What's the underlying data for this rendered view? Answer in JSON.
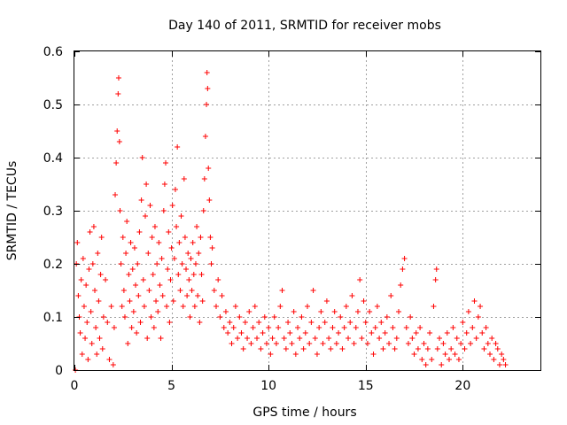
{
  "chart_data": {
    "type": "scatter",
    "title": "Day 140 of 2011, SRMTID for receiver mobs",
    "xlabel": "GPS time / hours",
    "ylabel": "SRMTID / TECUs",
    "xlim": [
      0,
      24
    ],
    "ylim": [
      0,
      0.6
    ],
    "x_ticks": [
      0,
      5,
      10,
      15,
      20
    ],
    "x_tick_labels": [
      "0",
      "5",
      "10",
      "15",
      "20"
    ],
    "y_ticks": [
      0,
      0.1,
      0.2,
      0.3,
      0.4,
      0.5,
      0.6
    ],
    "y_tick_labels": [
      "0",
      "0.1",
      "0.2",
      "0.3",
      "0.4",
      "0.5",
      "0.6"
    ],
    "grid": true,
    "marker": "+",
    "series_color": "#ff0000",
    "series": [
      {
        "name": "SRMTID",
        "points": [
          [
            0.05,
            0.0
          ],
          [
            0.1,
            0.2
          ],
          [
            0.15,
            0.24
          ],
          [
            0.2,
            0.14
          ],
          [
            0.25,
            0.1
          ],
          [
            0.3,
            0.07
          ],
          [
            0.35,
            0.17
          ],
          [
            0.4,
            0.03
          ],
          [
            0.45,
            0.21
          ],
          [
            0.5,
            0.12
          ],
          [
            0.55,
            0.06
          ],
          [
            0.6,
            0.16
          ],
          [
            0.65,
            0.09
          ],
          [
            0.7,
            0.02
          ],
          [
            0.75,
            0.19
          ],
          [
            0.8,
            0.26
          ],
          [
            0.85,
            0.11
          ],
          [
            0.9,
            0.05
          ],
          [
            0.95,
            0.2
          ],
          [
            1.0,
            0.27
          ],
          [
            1.05,
            0.15
          ],
          [
            1.1,
            0.08
          ],
          [
            1.15,
            0.03
          ],
          [
            1.2,
            0.22
          ],
          [
            1.25,
            0.13
          ],
          [
            1.3,
            0.06
          ],
          [
            1.35,
            0.18
          ],
          [
            1.4,
            0.25
          ],
          [
            1.45,
            0.04
          ],
          [
            1.5,
            0.1
          ],
          [
            1.6,
            0.17
          ],
          [
            1.7,
            0.09
          ],
          [
            1.8,
            0.02
          ],
          [
            1.9,
            0.12
          ],
          [
            2.0,
            0.01
          ],
          [
            2.05,
            0.08
          ],
          [
            2.1,
            0.33
          ],
          [
            2.15,
            0.39
          ],
          [
            2.2,
            0.45
          ],
          [
            2.25,
            0.52
          ],
          [
            2.28,
            0.55
          ],
          [
            2.32,
            0.43
          ],
          [
            2.35,
            0.3
          ],
          [
            2.4,
            0.2
          ],
          [
            2.45,
            0.12
          ],
          [
            2.5,
            0.25
          ],
          [
            2.55,
            0.15
          ],
          [
            2.6,
            0.1
          ],
          [
            2.65,
            0.22
          ],
          [
            2.7,
            0.28
          ],
          [
            2.75,
            0.05
          ],
          [
            2.8,
            0.18
          ],
          [
            2.85,
            0.13
          ],
          [
            2.9,
            0.24
          ],
          [
            2.95,
            0.08
          ],
          [
            3.0,
            0.19
          ],
          [
            3.05,
            0.11
          ],
          [
            3.1,
            0.23
          ],
          [
            3.15,
            0.16
          ],
          [
            3.2,
            0.07
          ],
          [
            3.25,
            0.2
          ],
          [
            3.3,
            0.14
          ],
          [
            3.35,
            0.26
          ],
          [
            3.4,
            0.09
          ],
          [
            3.45,
            0.32
          ],
          [
            3.5,
            0.4
          ],
          [
            3.55,
            0.17
          ],
          [
            3.6,
            0.12
          ],
          [
            3.65,
            0.29
          ],
          [
            3.7,
            0.35
          ],
          [
            3.75,
            0.06
          ],
          [
            3.8,
            0.22
          ],
          [
            3.85,
            0.15
          ],
          [
            3.9,
            0.31
          ],
          [
            3.95,
            0.1
          ],
          [
            4.0,
            0.25
          ],
          [
            4.05,
            0.18
          ],
          [
            4.1,
            0.08
          ],
          [
            4.15,
            0.27
          ],
          [
            4.2,
            0.13
          ],
          [
            4.25,
            0.2
          ],
          [
            4.3,
            0.11
          ],
          [
            4.35,
            0.24
          ],
          [
            4.4,
            0.16
          ],
          [
            4.45,
            0.06
          ],
          [
            4.5,
            0.21
          ],
          [
            4.55,
            0.14
          ],
          [
            4.6,
            0.3
          ],
          [
            4.65,
            0.35
          ],
          [
            4.7,
            0.39
          ],
          [
            4.75,
            0.12
          ],
          [
            4.8,
            0.19
          ],
          [
            4.85,
            0.26
          ],
          [
            4.9,
            0.09
          ],
          [
            4.95,
            0.17
          ],
          [
            5.0,
            0.23
          ],
          [
            5.05,
            0.31
          ],
          [
            5.1,
            0.13
          ],
          [
            5.15,
            0.21
          ],
          [
            5.2,
            0.34
          ],
          [
            5.25,
            0.27
          ],
          [
            5.3,
            0.42
          ],
          [
            5.35,
            0.18
          ],
          [
            5.4,
            0.24
          ],
          [
            5.45,
            0.15
          ],
          [
            5.5,
            0.29
          ],
          [
            5.55,
            0.2
          ],
          [
            5.6,
            0.12
          ],
          [
            5.65,
            0.36
          ],
          [
            5.7,
            0.25
          ],
          [
            5.75,
            0.19
          ],
          [
            5.8,
            0.14
          ],
          [
            5.85,
            0.22
          ],
          [
            5.9,
            0.17
          ],
          [
            5.95,
            0.1
          ],
          [
            6.0,
            0.21
          ],
          [
            6.05,
            0.15
          ],
          [
            6.1,
            0.24
          ],
          [
            6.15,
            0.18
          ],
          [
            6.2,
            0.12
          ],
          [
            6.25,
            0.2
          ],
          [
            6.3,
            0.27
          ],
          [
            6.35,
            0.14
          ],
          [
            6.4,
            0.22
          ],
          [
            6.45,
            0.09
          ],
          [
            6.5,
            0.25
          ],
          [
            6.55,
            0.18
          ],
          [
            6.6,
            0.13
          ],
          [
            6.65,
            0.3
          ],
          [
            6.7,
            0.36
          ],
          [
            6.75,
            0.44
          ],
          [
            6.8,
            0.5
          ],
          [
            6.83,
            0.56
          ],
          [
            6.86,
            0.53
          ],
          [
            6.9,
            0.38
          ],
          [
            6.95,
            0.32
          ],
          [
            7.0,
            0.25
          ],
          [
            7.05,
            0.2
          ],
          [
            7.1,
            0.23
          ],
          [
            7.2,
            0.15
          ],
          [
            7.3,
            0.12
          ],
          [
            7.4,
            0.17
          ],
          [
            7.5,
            0.1
          ],
          [
            7.6,
            0.14
          ],
          [
            7.7,
            0.08
          ],
          [
            7.8,
            0.11
          ],
          [
            7.9,
            0.07
          ],
          [
            8.0,
            0.09
          ],
          [
            8.1,
            0.05
          ],
          [
            8.2,
            0.08
          ],
          [
            8.3,
            0.12
          ],
          [
            8.4,
            0.06
          ],
          [
            8.5,
            0.1
          ],
          [
            8.6,
            0.07
          ],
          [
            8.7,
            0.04
          ],
          [
            8.8,
            0.09
          ],
          [
            8.9,
            0.06
          ],
          [
            9.0,
            0.11
          ],
          [
            9.1,
            0.05
          ],
          [
            9.2,
            0.08
          ],
          [
            9.3,
            0.12
          ],
          [
            9.4,
            0.06
          ],
          [
            9.5,
            0.09
          ],
          [
            9.6,
            0.04
          ],
          [
            9.7,
            0.07
          ],
          [
            9.8,
            0.1
          ],
          [
            9.9,
            0.05
          ],
          [
            10.0,
            0.08
          ],
          [
            10.1,
            0.03
          ],
          [
            10.2,
            0.06
          ],
          [
            10.3,
            0.1
          ],
          [
            10.4,
            0.05
          ],
          [
            10.5,
            0.08
          ],
          [
            10.6,
            0.12
          ],
          [
            10.7,
            0.15
          ],
          [
            10.8,
            0.06
          ],
          [
            10.9,
            0.04
          ],
          [
            11.0,
            0.09
          ],
          [
            11.1,
            0.07
          ],
          [
            11.2,
            0.05
          ],
          [
            11.3,
            0.11
          ],
          [
            11.4,
            0.03
          ],
          [
            11.5,
            0.08
          ],
          [
            11.6,
            0.06
          ],
          [
            11.7,
            0.1
          ],
          [
            11.8,
            0.04
          ],
          [
            11.9,
            0.07
          ],
          [
            12.0,
            0.12
          ],
          [
            12.1,
            0.05
          ],
          [
            12.2,
            0.09
          ],
          [
            12.3,
            0.15
          ],
          [
            12.4,
            0.06
          ],
          [
            12.5,
            0.03
          ],
          [
            12.6,
            0.08
          ],
          [
            12.7,
            0.11
          ],
          [
            12.8,
            0.05
          ],
          [
            12.9,
            0.09
          ],
          [
            13.0,
            0.13
          ],
          [
            13.1,
            0.06
          ],
          [
            13.2,
            0.04
          ],
          [
            13.3,
            0.08
          ],
          [
            13.4,
            0.11
          ],
          [
            13.5,
            0.05
          ],
          [
            13.6,
            0.07
          ],
          [
            13.7,
            0.1
          ],
          [
            13.8,
            0.04
          ],
          [
            13.9,
            0.08
          ],
          [
            14.0,
            0.12
          ],
          [
            14.1,
            0.06
          ],
          [
            14.2,
            0.09
          ],
          [
            14.3,
            0.14
          ],
          [
            14.4,
            0.05
          ],
          [
            14.5,
            0.08
          ],
          [
            14.6,
            0.11
          ],
          [
            14.7,
            0.17
          ],
          [
            14.8,
            0.06
          ],
          [
            14.9,
            0.13
          ],
          [
            15.0,
            0.09
          ],
          [
            15.1,
            0.05
          ],
          [
            15.2,
            0.11
          ],
          [
            15.3,
            0.07
          ],
          [
            15.4,
            0.03
          ],
          [
            15.5,
            0.08
          ],
          [
            15.6,
            0.12
          ],
          [
            15.7,
            0.06
          ],
          [
            15.8,
            0.09
          ],
          [
            15.9,
            0.04
          ],
          [
            16.0,
            0.07
          ],
          [
            16.1,
            0.1
          ],
          [
            16.2,
            0.05
          ],
          [
            16.3,
            0.14
          ],
          [
            16.4,
            0.08
          ],
          [
            16.5,
            0.04
          ],
          [
            16.6,
            0.06
          ],
          [
            16.7,
            0.11
          ],
          [
            16.8,
            0.16
          ],
          [
            16.9,
            0.19
          ],
          [
            17.0,
            0.21
          ],
          [
            17.1,
            0.08
          ],
          [
            17.2,
            0.05
          ],
          [
            17.3,
            0.1
          ],
          [
            17.4,
            0.06
          ],
          [
            17.5,
            0.03
          ],
          [
            17.6,
            0.07
          ],
          [
            17.7,
            0.04
          ],
          [
            17.8,
            0.08
          ],
          [
            17.9,
            0.02
          ],
          [
            18.0,
            0.05
          ],
          [
            18.1,
            0.01
          ],
          [
            18.2,
            0.04
          ],
          [
            18.3,
            0.07
          ],
          [
            18.4,
            0.02
          ],
          [
            18.5,
            0.12
          ],
          [
            18.6,
            0.17
          ],
          [
            18.65,
            0.19
          ],
          [
            18.7,
            0.04
          ],
          [
            18.8,
            0.06
          ],
          [
            18.9,
            0.01
          ],
          [
            19.0,
            0.05
          ],
          [
            19.1,
            0.03
          ],
          [
            19.2,
            0.07
          ],
          [
            19.3,
            0.02
          ],
          [
            19.4,
            0.04
          ],
          [
            19.5,
            0.08
          ],
          [
            19.6,
            0.03
          ],
          [
            19.7,
            0.06
          ],
          [
            19.8,
            0.02
          ],
          [
            19.9,
            0.05
          ],
          [
            20.0,
            0.09
          ],
          [
            20.1,
            0.04
          ],
          [
            20.2,
            0.07
          ],
          [
            20.3,
            0.11
          ],
          [
            20.4,
            0.05
          ],
          [
            20.5,
            0.08
          ],
          [
            20.6,
            0.13
          ],
          [
            20.7,
            0.06
          ],
          [
            20.8,
            0.1
          ],
          [
            20.9,
            0.12
          ],
          [
            21.0,
            0.07
          ],
          [
            21.1,
            0.04
          ],
          [
            21.2,
            0.08
          ],
          [
            21.3,
            0.05
          ],
          [
            21.4,
            0.03
          ],
          [
            21.5,
            0.06
          ],
          [
            21.6,
            0.02
          ],
          [
            21.7,
            0.05
          ],
          [
            21.8,
            0.04
          ],
          [
            21.9,
            0.01
          ],
          [
            22.0,
            0.03
          ],
          [
            22.1,
            0.02
          ],
          [
            22.2,
            0.01
          ]
        ]
      }
    ]
  }
}
